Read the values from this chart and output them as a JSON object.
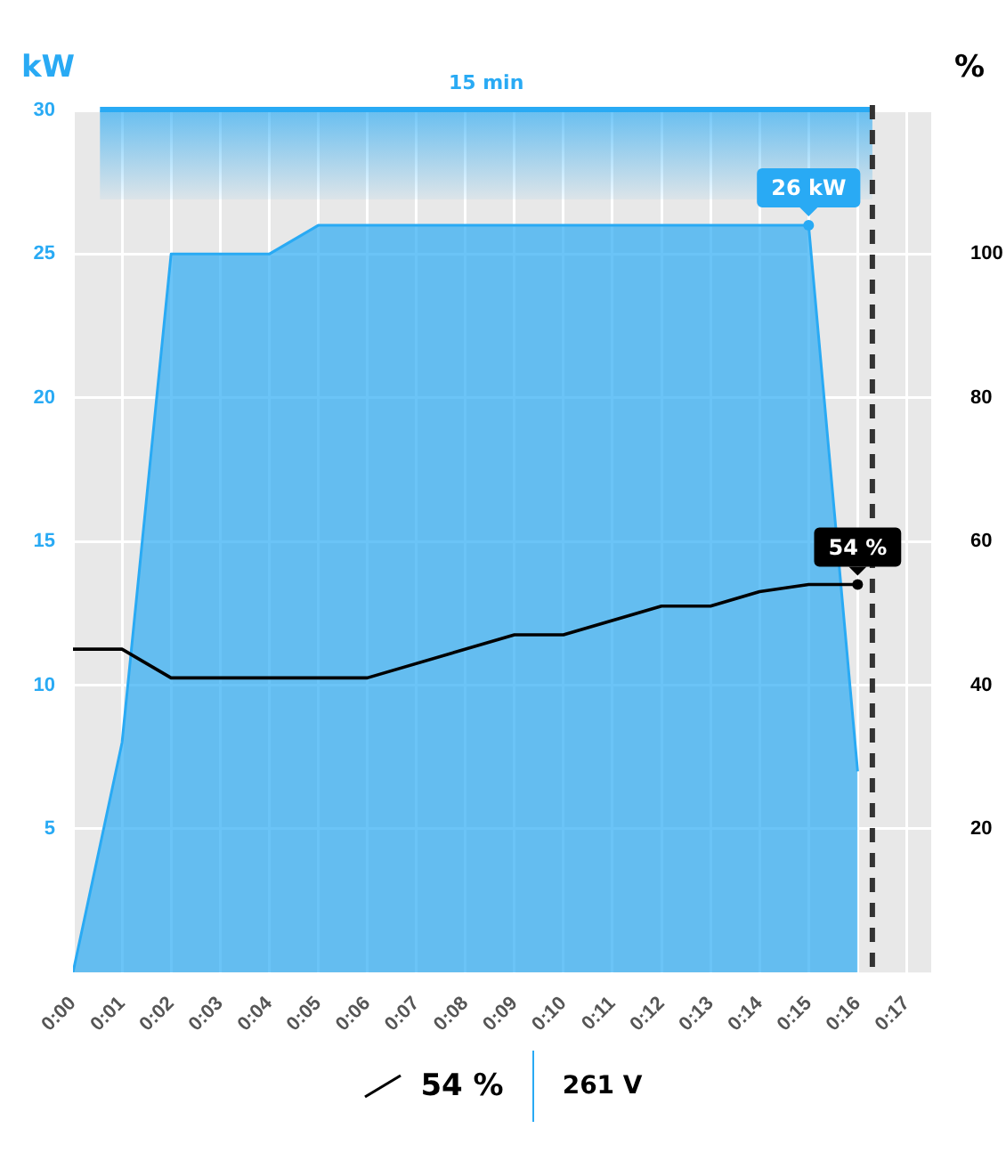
{
  "chart_data": {
    "type": "area",
    "ylabel": "kW",
    "y2label": "%",
    "xlim": [
      0,
      17.5
    ],
    "xticks": [
      {
        "value": 0,
        "label": "0:00"
      },
      {
        "value": 1,
        "label": "0:01"
      },
      {
        "value": 2,
        "label": "0:02"
      },
      {
        "value": 3,
        "label": "0:03"
      },
      {
        "value": 4,
        "label": "0:04"
      },
      {
        "value": 5,
        "label": "0:05"
      },
      {
        "value": 6,
        "label": "0:06"
      },
      {
        "value": 7,
        "label": "0:07"
      },
      {
        "value": 8,
        "label": "0:08"
      },
      {
        "value": 9,
        "label": "0:09"
      },
      {
        "value": 10,
        "label": "0:10"
      },
      {
        "value": 11,
        "label": "0:11"
      },
      {
        "value": 12,
        "label": "0:12"
      },
      {
        "value": 13,
        "label": "0:13"
      },
      {
        "value": 14,
        "label": "0:14"
      },
      {
        "value": 15,
        "label": "0:15"
      },
      {
        "value": 16,
        "label": "0:16"
      },
      {
        "value": 17,
        "label": "0:17"
      }
    ],
    "ylim": [
      0,
      30
    ],
    "yticks": [
      5,
      10,
      15,
      20,
      25,
      30
    ],
    "y2lim": [
      0,
      120
    ],
    "y2ticks": [
      20,
      40,
      60,
      80,
      100
    ],
    "grid": true,
    "legend": false,
    "marker": "none",
    "series": [
      {
        "color": "#29aaf4",
        "x": [
          0,
          1,
          2,
          4,
          5,
          15,
          16
        ],
        "values": [
          0,
          8,
          25,
          25,
          26,
          26,
          7
        ],
        "value_labels": [
          null,
          null,
          null,
          null,
          null,
          "26 kW",
          null
        ]
      },
      {
        "type": "line",
        "axis": "y2",
        "color": "#000000",
        "x": [
          0,
          1,
          2,
          6,
          9,
          10,
          12,
          13,
          14,
          15,
          16
        ],
        "values": [
          45,
          45,
          41,
          41,
          47,
          47,
          51,
          51,
          53,
          54,
          54
        ],
        "value_labels": [
          null,
          null,
          null,
          null,
          null,
          null,
          null,
          null,
          null,
          null,
          "54 %"
        ]
      }
    ],
    "ref_lines": [
      {
        "axis": "x",
        "value": 16.3,
        "color": "#333333",
        "line_style": "dashed"
      }
    ],
    "bands": [
      {
        "axis": "x",
        "from": 0.55,
        "to": 16.3,
        "label": "15 min",
        "color": "#29aaf4"
      }
    ],
    "annotations": [
      "54 %",
      "261 V"
    ]
  }
}
